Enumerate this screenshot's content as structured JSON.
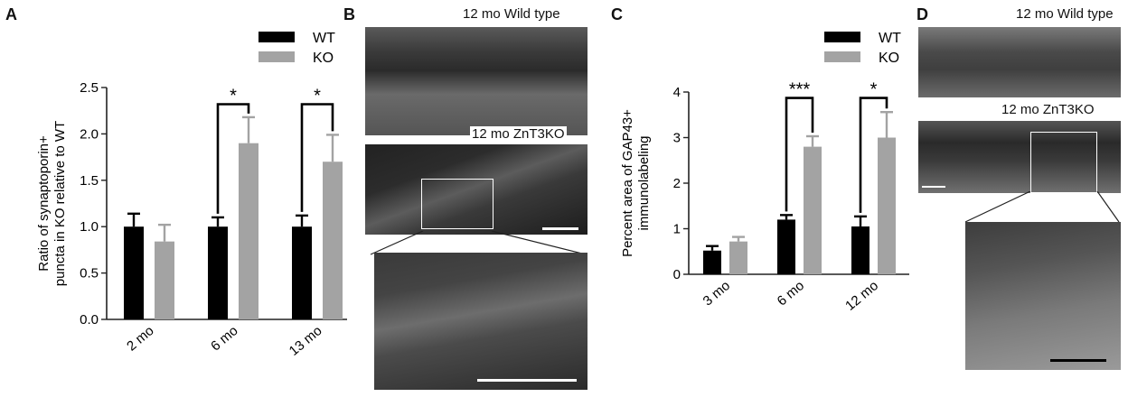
{
  "panel_a": {
    "letter": "A"
  },
  "panel_b": {
    "letter": "B",
    "top_label": "12 mo Wild type",
    "bottom_label": "12 mo ZnT3KO"
  },
  "panel_c": {
    "letter": "C"
  },
  "panel_d": {
    "letter": "D",
    "top_label": "12 mo Wild type",
    "bottom_label": "12 mo ZnT3KO"
  },
  "colors": {
    "wt": "#000000",
    "ko": "#a3a3a3"
  },
  "chart_data": [
    {
      "type": "bar",
      "ylabel_line1": "Ratio of synaptoporin+",
      "ylabel_line2": "puncta in KO relative to WT",
      "categories": [
        "2 mo",
        "6 mo",
        "13 mo"
      ],
      "ylim": [
        0,
        2.5
      ],
      "yticks": [
        "0.0",
        "0.5",
        "1.0",
        "1.5",
        "2.0",
        "2.5"
      ],
      "ytick_values": [
        0,
        0.5,
        1.0,
        1.5,
        2.0,
        2.5
      ],
      "legend": [
        "WT",
        "KO"
      ],
      "series": [
        {
          "name": "WT",
          "values": [
            1.0,
            1.0,
            1.0
          ],
          "errors": [
            0.14,
            0.1,
            0.12
          ]
        },
        {
          "name": "KO",
          "values": [
            0.84,
            1.9,
            1.7
          ],
          "errors": [
            0.18,
            0.28,
            0.29
          ]
        }
      ],
      "significance": [
        {
          "category": 1,
          "label": "*",
          "y": 2.32
        },
        {
          "category": 2,
          "label": "*",
          "y": 2.32
        }
      ]
    },
    {
      "type": "bar",
      "ylabel_line1": "Percent area of GAP43+",
      "ylabel_line2": "immunolabeling",
      "categories": [
        "3 mo",
        "6 mo",
        "12 mo"
      ],
      "ylim": [
        0,
        4
      ],
      "yticks": [
        "0",
        "1",
        "2",
        "3",
        "4"
      ],
      "ytick_values": [
        0,
        1,
        2,
        3,
        4
      ],
      "legend": [
        "WT",
        "KO"
      ],
      "series": [
        {
          "name": "WT",
          "values": [
            0.52,
            1.2,
            1.05
          ],
          "errors": [
            0.1,
            0.1,
            0.22
          ]
        },
        {
          "name": "KO",
          "values": [
            0.72,
            2.8,
            3.0
          ],
          "errors": [
            0.1,
            0.23,
            0.56
          ]
        }
      ],
      "significance": [
        {
          "category": 1,
          "label": "***",
          "y": 3.87
        },
        {
          "category": 2,
          "label": "*",
          "y": 3.87
        }
      ]
    }
  ]
}
